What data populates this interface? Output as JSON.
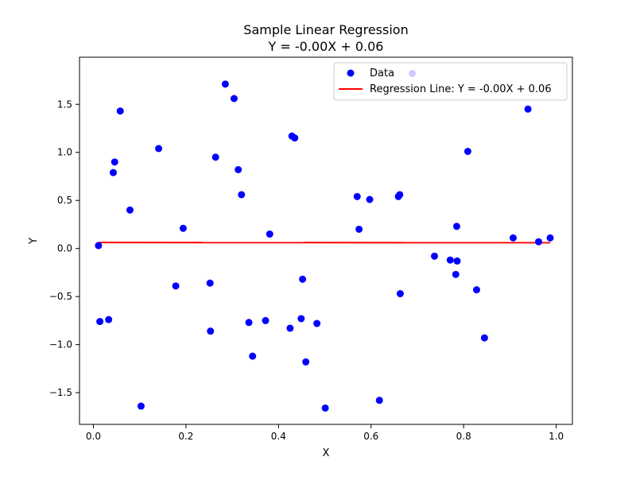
{
  "chart_data": {
    "type": "scatter",
    "title": "Sample Linear Regression",
    "subtitle": "Y = -0.00X + 0.06",
    "xlabel": "X",
    "ylabel": "Y",
    "xlim": [
      -0.03,
      1.035
    ],
    "ylim": [
      -1.83,
      1.99
    ],
    "xticks": [
      0.0,
      0.2,
      0.4,
      0.6,
      0.8,
      1.0
    ],
    "xtick_labels": [
      "0.0",
      "0.2",
      "0.4",
      "0.6",
      "0.8",
      "1.0"
    ],
    "yticks": [
      -1.5,
      -1.0,
      -0.5,
      0.0,
      0.5,
      1.0,
      1.5
    ],
    "ytick_labels": [
      "−1.5",
      "−1.0",
      "−0.5",
      "0.0",
      "0.5",
      "1.0",
      "1.5"
    ],
    "grid": false,
    "legend_position": "top-right",
    "series": [
      {
        "name": "Data",
        "kind": "scatter",
        "color": "#0000ff",
        "points": [
          [
            0.011,
            0.03
          ],
          [
            0.014,
            -0.76
          ],
          [
            0.033,
            -0.74
          ],
          [
            0.043,
            0.79
          ],
          [
            0.046,
            0.9
          ],
          [
            0.058,
            1.43
          ],
          [
            0.079,
            0.4
          ],
          [
            0.103,
            -1.64
          ],
          [
            0.141,
            1.04
          ],
          [
            0.178,
            -0.39
          ],
          [
            0.194,
            0.21
          ],
          [
            0.252,
            -0.36
          ],
          [
            0.253,
            -0.86
          ],
          [
            0.264,
            0.95
          ],
          [
            0.285,
            1.71
          ],
          [
            0.304,
            1.56
          ],
          [
            0.313,
            0.82
          ],
          [
            0.32,
            0.56
          ],
          [
            0.336,
            -0.77
          ],
          [
            0.344,
            -1.12
          ],
          [
            0.372,
            -0.75
          ],
          [
            0.381,
            0.15
          ],
          [
            0.425,
            -0.83
          ],
          [
            0.429,
            1.17
          ],
          [
            0.435,
            1.15
          ],
          [
            0.449,
            -0.73
          ],
          [
            0.452,
            -0.32
          ],
          [
            0.459,
            -1.18
          ],
          [
            0.483,
            -0.78
          ],
          [
            0.501,
            -1.66
          ],
          [
            0.57,
            0.54
          ],
          [
            0.574,
            0.2
          ],
          [
            0.597,
            0.51
          ],
          [
            0.618,
            -1.58
          ],
          [
            0.659,
            0.54
          ],
          [
            0.662,
            0.56
          ],
          [
            0.663,
            -0.47
          ],
          [
            0.689,
            1.82
          ],
          [
            0.737,
            -0.08
          ],
          [
            0.771,
            -0.12
          ],
          [
            0.783,
            -0.27
          ],
          [
            0.785,
            0.23
          ],
          [
            0.786,
            -0.13
          ],
          [
            0.809,
            1.01
          ],
          [
            0.828,
            -0.43
          ],
          [
            0.845,
            -0.93
          ],
          [
            0.907,
            0.11
          ],
          [
            0.939,
            1.45
          ],
          [
            0.962,
            0.07
          ],
          [
            0.987,
            0.11
          ]
        ]
      },
      {
        "name": "Regression Line: Y = -0.00X + 0.06",
        "kind": "line",
        "color": "#ff0000",
        "x": [
          0.011,
          0.987
        ],
        "y": [
          0.062,
          0.06
        ]
      }
    ]
  }
}
